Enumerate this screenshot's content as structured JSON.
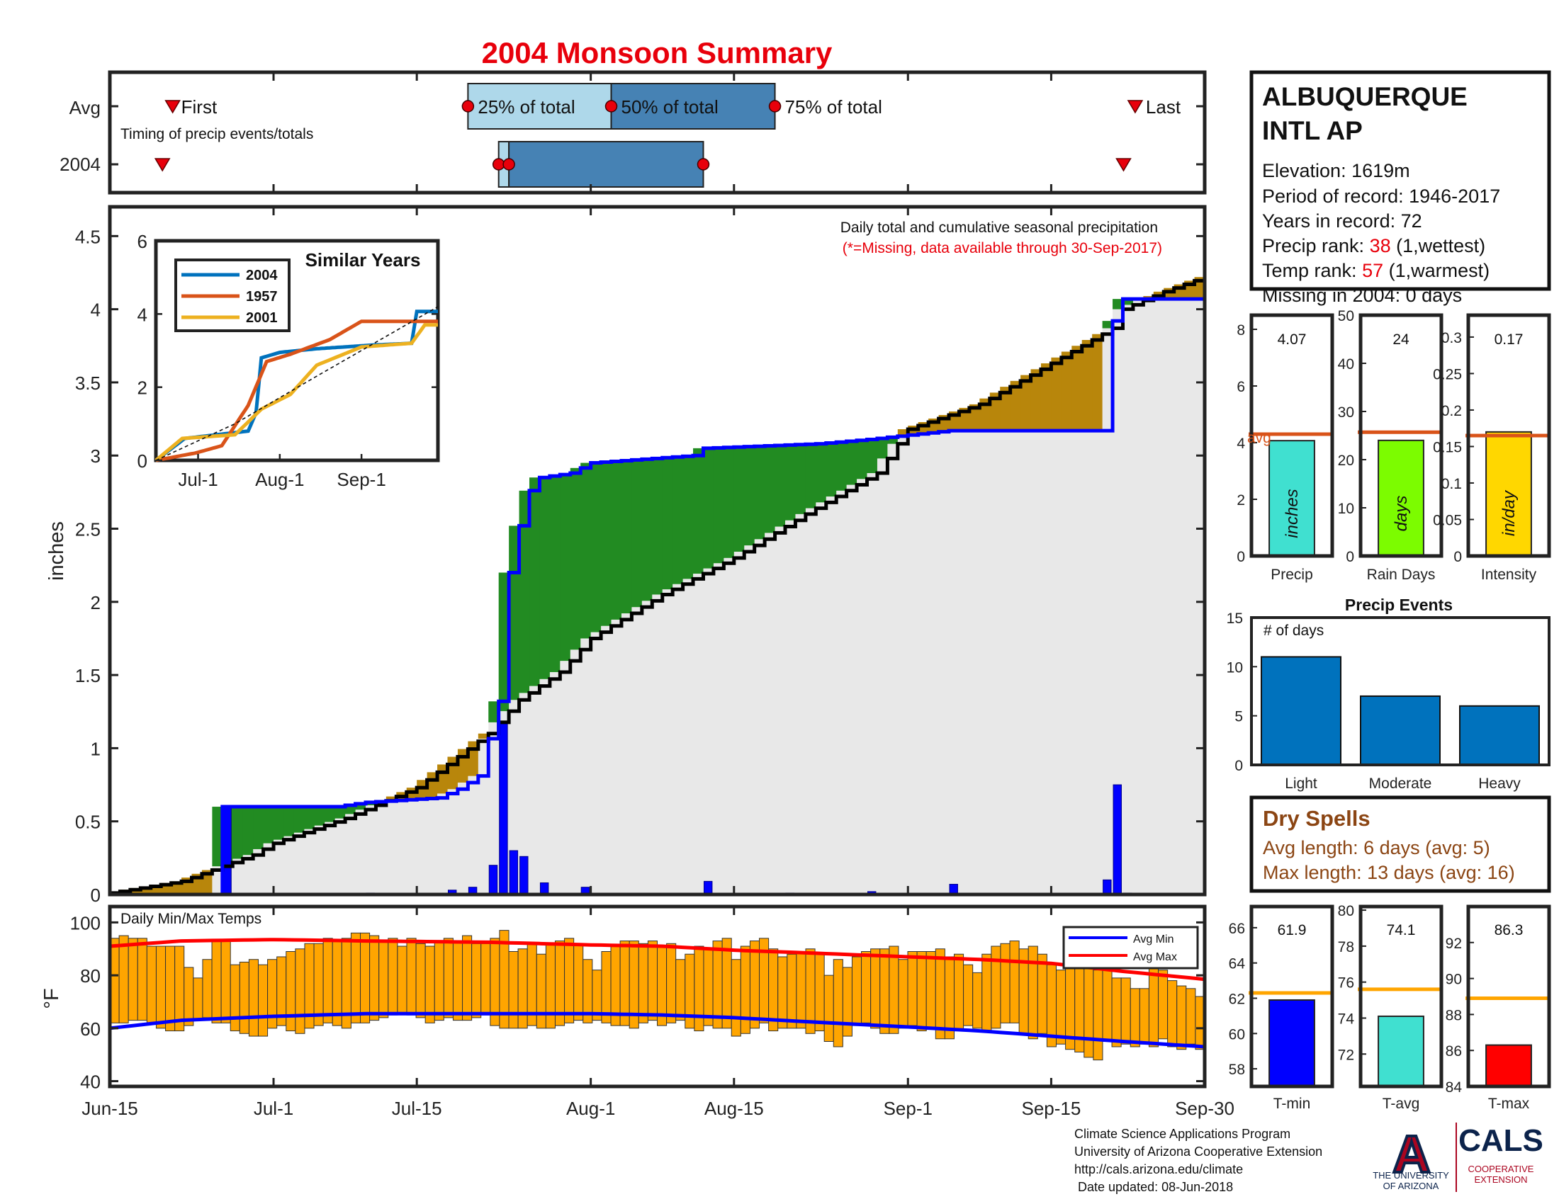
{
  "title": "2004 Monsoon Summary",
  "colors": {
    "title": "#e8000b",
    "red": "#e8000b",
    "brown": "#8b4513",
    "q_light": "#aed8ea",
    "q_dark": "#4682b4",
    "surplus": "#228b22",
    "deficit": "#b8860b",
    "cumulative_area": "#e8e8e8",
    "daily_bar": "#0000ff",
    "temp_bar": "#ffa500",
    "avg_line": "#d95319",
    "events_bar": "#0072bd",
    "precip_bar": "#40e0d0",
    "raindays_bar": "#7cfc00",
    "intensity_bar": "#ffd700",
    "tmin_bar": "#0000ff",
    "tavg_bar": "#40e0d0",
    "tmax_bar": "#ff0000",
    "temp_avg_line": "#ffa500",
    "ua_blue": "#0c234b",
    "ua_red": "#ab0520"
  },
  "timing": {
    "row_labels": [
      "Avg",
      "2004"
    ],
    "caption": "Timing of precip events/totals",
    "avg": {
      "first": "Jun-21",
      "q25": "Jul-20",
      "q50": "Aug-3",
      "q75": "Aug-19",
      "last": "Sep-23",
      "first_label": "First",
      "q25_label": "25% of total",
      "q50_label": "50% of total",
      "q75_label": "75% of total",
      "last_label": "Last"
    },
    "year": {
      "first": "Jun-20",
      "q25": "Jul-23",
      "q50": "Jul-24",
      "q75": "Aug-12",
      "last": "Sep-22"
    }
  },
  "station": {
    "name_line1": "ALBUQUERQUE",
    "name_line2": "INTL AP",
    "elevation": "Elevation: 1619m",
    "period": "Period of record: 1946-2017",
    "years": "Years in record: 72",
    "precip_rank_label": "Precip rank: ",
    "precip_rank_value": "38",
    "precip_rank_note": " (1,wettest)",
    "temp_rank_label": "Temp rank: ",
    "temp_rank_value": "57",
    "temp_rank_note": " (1,warmest)",
    "missing": "Missing in 2004: 0 days"
  },
  "main": {
    "header_line1": "Daily total and cumulative seasonal precipitation",
    "header_line2": "(*=Missing, data available through 30-Sep-2017)",
    "ylabel": "inches",
    "yticks": [
      "0",
      "0.5",
      "1",
      "1.5",
      "2",
      "2.5",
      "3",
      "3.5",
      "4",
      "4.5"
    ],
    "x_tick_labels": [
      "Jun-15",
      "Jul-1",
      "Jul-15",
      "Aug-1",
      "Aug-15",
      "Sep-1",
      "Sep-15",
      "Sep-30"
    ]
  },
  "inset": {
    "title": "Similar Years",
    "legend": [
      "2004",
      "1957",
      "2001"
    ],
    "colors": [
      "#0072bd",
      "#d95319",
      "#edb120"
    ],
    "yticks": [
      "0",
      "2",
      "4",
      "6"
    ],
    "xticks": [
      "Jul-1",
      "Aug-1",
      "Sep-1"
    ]
  },
  "temps": {
    "label": "Daily Min/Max Temps",
    "ylabel": "°F",
    "yticks": [
      "40",
      "60",
      "80",
      "100"
    ],
    "legend": [
      "Avg Min",
      "Avg Max"
    ]
  },
  "summary_bars": [
    {
      "label": "Precip",
      "value_text": "4.07",
      "unit": "inches",
      "value": 4.07,
      "avg": 4.3,
      "ymax": 8.5,
      "ticks": [
        {
          "v": 0,
          "t": "0"
        },
        {
          "v": 2,
          "t": "2"
        },
        {
          "v": 4,
          "t": "4"
        },
        {
          "v": 6,
          "t": "6"
        },
        {
          "v": 8,
          "t": "8"
        }
      ],
      "avg_label": "avg"
    },
    {
      "label": "Rain Days",
      "value_text": "24",
      "unit": "days",
      "value": 24,
      "avg": 25.7,
      "ymax": 50,
      "ticks": [
        {
          "v": 0,
          "t": "0"
        },
        {
          "v": 10,
          "t": "10"
        },
        {
          "v": 20,
          "t": "20"
        },
        {
          "v": 30,
          "t": "30"
        },
        {
          "v": 40,
          "t": "40"
        },
        {
          "v": 50,
          "t": "50"
        }
      ]
    },
    {
      "label": "Intensity",
      "value_text": "0.17",
      "unit": "in/day",
      "value": 0.17,
      "avg": 0.165,
      "ymax": 0.33,
      "ticks": [
        {
          "v": 0,
          "t": "0"
        },
        {
          "v": 0.05,
          "t": "0.05"
        },
        {
          "v": 0.1,
          "t": "0.1"
        },
        {
          "v": 0.15,
          "t": "0.15"
        },
        {
          "v": 0.2,
          "t": "0.2"
        },
        {
          "v": 0.25,
          "t": "0.25"
        },
        {
          "v": 0.3,
          "t": "0.3"
        }
      ]
    }
  ],
  "events": {
    "title": "Precip Events",
    "ylabel_inside": "# of days",
    "yticks": [
      "0",
      "5",
      "10",
      "15"
    ]
  },
  "dry_spells": {
    "title": "Dry Spells",
    "avg_length": "Avg length: 6 days (avg: 5)",
    "max_length": "Max length: 13 days (avg: 16)"
  },
  "temp_bars": [
    {
      "label": "T-min",
      "value_text": "61.9",
      "value": 61.9,
      "avg": 62.3,
      "ymin": 57,
      "ymax": 67.2,
      "ticks": [
        {
          "v": 58,
          "t": "58"
        },
        {
          "v": 60,
          "t": "60"
        },
        {
          "v": 62,
          "t": "62"
        },
        {
          "v": 64,
          "t": "64"
        },
        {
          "v": 66,
          "t": "66"
        }
      ]
    },
    {
      "label": "T-avg",
      "value_text": "74.1",
      "value": 74.1,
      "avg": 75.6,
      "ymin": 70.2,
      "ymax": 80.2,
      "ticks": [
        {
          "v": 72,
          "t": "72"
        },
        {
          "v": 74,
          "t": "74"
        },
        {
          "v": 76,
          "t": "76"
        },
        {
          "v": 78,
          "t": "78"
        },
        {
          "v": 80,
          "t": "80"
        }
      ]
    },
    {
      "label": "T-max",
      "value_text": "86.3",
      "value": 86.3,
      "avg": 88.9,
      "ymin": 84,
      "ymax": 94,
      "ticks": [
        {
          "v": 84,
          "t": "84"
        },
        {
          "v": 86,
          "t": "86"
        },
        {
          "v": 88,
          "t": "88"
        },
        {
          "v": 90,
          "t": "90"
        },
        {
          "v": 92,
          "t": "92"
        }
      ]
    }
  ],
  "footer": {
    "line1": "Climate Science Applications Program",
    "line2": "University of Arizona Cooperative Extension",
    "line3": "http://cals.arizona.edu/climate",
    "line4": " Date updated: 08-Jun-2018",
    "ua_lines": [
      "THE UNIVERSITY",
      "OF ARIZONA"
    ],
    "cals": "CALS",
    "cals_sub": [
      "COOPERATIVE",
      "EXTENSION"
    ],
    "ua_letter": "A"
  },
  "chart_data": [
    {
      "type": "area",
      "name": "daily-and-cumulative-precip",
      "x_unit": "date (Jun-15 to Sep-30, 2004)",
      "ylabel": "inches",
      "ylim": [
        0,
        4.7
      ],
      "avg_cumulative": [
        [
          "Jun-15",
          0.01
        ],
        [
          "Jun-22",
          0.09
        ],
        [
          "Jun-29",
          0.27
        ],
        [
          "Jul-1",
          0.35
        ],
        [
          "Jul-8",
          0.52
        ],
        [
          "Jul-15",
          0.73
        ],
        [
          "Jul-22",
          1.1
        ],
        [
          "Jul-25",
          1.33
        ],
        [
          "Jul-29",
          1.52
        ],
        [
          "Aug-1",
          1.75
        ],
        [
          "Aug-8",
          2.05
        ],
        [
          "Aug-15",
          2.3
        ],
        [
          "Aug-22",
          2.6
        ],
        [
          "Aug-29",
          2.88
        ],
        [
          "Sep-1",
          3.18
        ],
        [
          "Sep-8",
          3.35
        ],
        [
          "Sep-15",
          3.63
        ],
        [
          "Sep-21",
          3.87
        ],
        [
          "Sep-22",
          4.0
        ],
        [
          "Sep-26",
          4.12
        ],
        [
          "Sep-30",
          4.22
        ]
      ],
      "year_cumulative": [
        [
          "Jun-15",
          0.0
        ],
        [
          "Jun-25",
          0.0
        ],
        [
          "Jun-26",
          0.6
        ],
        [
          "Jul-7",
          0.6
        ],
        [
          "Jul-10",
          0.63
        ],
        [
          "Jul-17",
          0.66
        ],
        [
          "Jul-19",
          0.72
        ],
        [
          "Jul-21",
          0.81
        ],
        [
          "Jul-23",
          1.32
        ],
        [
          "Jul-24",
          2.2
        ],
        [
          "Jul-25",
          2.52
        ],
        [
          "Jul-26",
          2.76
        ],
        [
          "Jul-27",
          2.85
        ],
        [
          "Jul-30",
          2.88
        ],
        [
          "Aug-1",
          2.95
        ],
        [
          "Aug-11",
          3.0
        ],
        [
          "Aug-12",
          3.05
        ],
        [
          "Aug-23",
          3.08
        ],
        [
          "Aug-28",
          3.11
        ],
        [
          "Sep-5",
          3.17
        ],
        [
          "Sep-20",
          3.17
        ],
        [
          "Sep-21",
          3.92
        ],
        [
          "Sep-22",
          4.07
        ],
        [
          "Sep-30",
          4.07
        ]
      ],
      "daily": [
        [
          "Jun-26",
          0.6
        ],
        [
          "Jul-10",
          0.01
        ],
        [
          "Jul-18",
          0.03
        ],
        [
          "Jul-20",
          0.05
        ],
        [
          "Jul-22",
          0.2
        ],
        [
          "Jul-23",
          1.18
        ],
        [
          "Jul-24",
          0.3
        ],
        [
          "Jul-25",
          0.26
        ],
        [
          "Jul-27",
          0.08
        ],
        [
          "Jul-31",
          0.05
        ],
        [
          "Aug-12",
          0.09
        ],
        [
          "Aug-20",
          0.01
        ],
        [
          "Aug-28",
          0.02
        ],
        [
          "Sep-5",
          0.07
        ],
        [
          "Sep-20",
          0.1
        ],
        [
          "Sep-21",
          0.75
        ],
        [
          "Sep-22",
          0.01
        ]
      ]
    },
    {
      "type": "line",
      "name": "similar-years",
      "ylim": [
        0,
        6
      ],
      "series": [
        {
          "name": "2004",
          "points": [
            [
              "Jun-15",
              0
            ],
            [
              "Jun-26",
              0.6
            ],
            [
              "Jul-20",
              0.8
            ],
            [
              "Jul-23",
              1.3
            ],
            [
              "Jul-25",
              2.8
            ],
            [
              "Aug-1",
              2.95
            ],
            [
              "Aug-15",
              3.05
            ],
            [
              "Sep-5",
              3.15
            ],
            [
              "Sep-20",
              3.2
            ],
            [
              "Sep-22",
              4.07
            ],
            [
              "Sep-30",
              4.07
            ]
          ]
        },
        {
          "name": "1957",
          "points": [
            [
              "Jun-15",
              0
            ],
            [
              "Jun-30",
              0.2
            ],
            [
              "Jul-10",
              0.4
            ],
            [
              "Jul-20",
              1.5
            ],
            [
              "Jul-27",
              2.7
            ],
            [
              "Aug-5",
              2.9
            ],
            [
              "Aug-20",
              3.3
            ],
            [
              "Sep-1",
              3.8
            ],
            [
              "Sep-30",
              3.8
            ]
          ]
        },
        {
          "name": "2001",
          "points": [
            [
              "Jun-15",
              0
            ],
            [
              "Jun-25",
              0.6
            ],
            [
              "Jul-15",
              0.7
            ],
            [
              "Jul-25",
              1.4
            ],
            [
              "Aug-5",
              1.8
            ],
            [
              "Aug-15",
              2.6
            ],
            [
              "Sep-1",
              3.1
            ],
            [
              "Sep-20",
              3.2
            ],
            [
              "Sep-25",
              3.7
            ],
            [
              "Sep-30",
              3.7
            ]
          ]
        },
        {
          "name": "avg",
          "points": [
            [
              "Jun-15",
              0
            ],
            [
              "Jul-15",
              1.0
            ],
            [
              "Aug-15",
              2.3
            ],
            [
              "Sep-30",
              4.2
            ]
          ]
        }
      ]
    },
    {
      "type": "bar",
      "name": "daily-min-max-temps",
      "ylabel": "°F",
      "ylim": [
        38,
        106
      ],
      "tmin": [
        62,
        62,
        63,
        63,
        62,
        60,
        59,
        59,
        61,
        63,
        64,
        62,
        62,
        59,
        58,
        57,
        57,
        60,
        61,
        59,
        58,
        60,
        61,
        62,
        61,
        60,
        62,
        62,
        63,
        64,
        65,
        66,
        65,
        64,
        62,
        63,
        64,
        63,
        63,
        64,
        65,
        61,
        60,
        60,
        60,
        61,
        60,
        60,
        61,
        62,
        63,
        62,
        63,
        62,
        61,
        61,
        60,
        62,
        63,
        61,
        62,
        63,
        60,
        59,
        61,
        60,
        60,
        57,
        58,
        60,
        62,
        59,
        60,
        60,
        60,
        58,
        59,
        55,
        53,
        57,
        61,
        62,
        60,
        58,
        58,
        60,
        61,
        59,
        60,
        56,
        56,
        59,
        61,
        60,
        59,
        60,
        62,
        62,
        58,
        56,
        58,
        53,
        54,
        52,
        51,
        49,
        48,
        55,
        53,
        54,
        53,
        54,
        53,
        56,
        53,
        52,
        54,
        52
      ],
      "tmax": [
        94,
        95,
        94,
        94,
        91,
        91,
        91,
        91,
        83,
        79,
        86,
        93,
        93,
        84,
        85,
        86,
        84,
        86,
        87,
        89,
        90,
        92,
        92,
        94,
        93,
        94,
        96,
        96,
        95,
        93,
        94,
        91,
        94,
        92,
        91,
        93,
        94,
        93,
        95,
        92,
        92,
        94,
        97,
        89,
        90,
        92,
        88,
        92,
        93,
        94,
        92,
        86,
        82,
        89,
        91,
        93,
        93,
        92,
        93,
        91,
        92,
        86,
        88,
        91,
        90,
        93,
        94,
        86,
        91,
        93,
        94,
        90,
        87,
        88,
        89,
        90,
        88,
        80,
        86,
        83,
        87,
        89,
        90,
        90,
        91,
        86,
        89,
        89,
        89,
        90,
        87,
        88,
        84,
        81,
        88,
        91,
        92,
        93,
        90,
        91,
        88,
        84,
        82,
        87,
        83,
        87,
        82,
        83,
        79,
        79,
        75,
        75,
        85,
        82,
        78,
        76,
        75,
        72
      ],
      "avg_min": [
        [
          "Jun-15",
          60
        ],
        [
          "Jun-22",
          63
        ],
        [
          "Jul-1",
          64.5
        ],
        [
          "Jul-10",
          65.5
        ],
        [
          "Jul-22",
          65.5
        ],
        [
          "Aug-1",
          65.5
        ],
        [
          "Aug-8",
          65
        ],
        [
          "Aug-15",
          64
        ],
        [
          "Aug-22",
          62.5
        ],
        [
          "Sep-1",
          60.5
        ],
        [
          "Sep-8",
          59
        ],
        [
          "Sep-15",
          57
        ],
        [
          "Sep-22",
          55
        ],
        [
          "Sep-30",
          53
        ]
      ],
      "avg_max": [
        [
          "Jun-15",
          91
        ],
        [
          "Jun-22",
          93
        ],
        [
          "Jul-1",
          93.5
        ],
        [
          "Jul-10",
          93
        ],
        [
          "Jul-22",
          92.5
        ],
        [
          "Aug-1",
          91.5
        ],
        [
          "Aug-8",
          91
        ],
        [
          "Aug-15",
          89.5
        ],
        [
          "Aug-22",
          88.5
        ],
        [
          "Sep-1",
          87
        ],
        [
          "Sep-8",
          86
        ],
        [
          "Sep-15",
          84.5
        ],
        [
          "Sep-22",
          81.5
        ],
        [
          "Sep-30",
          78.5
        ]
      ]
    },
    {
      "type": "bar",
      "name": "precip-events",
      "categories": [
        "Light",
        "Moderate",
        "Heavy"
      ],
      "values": [
        11,
        7,
        6
      ],
      "ylim": [
        0,
        15
      ]
    }
  ]
}
